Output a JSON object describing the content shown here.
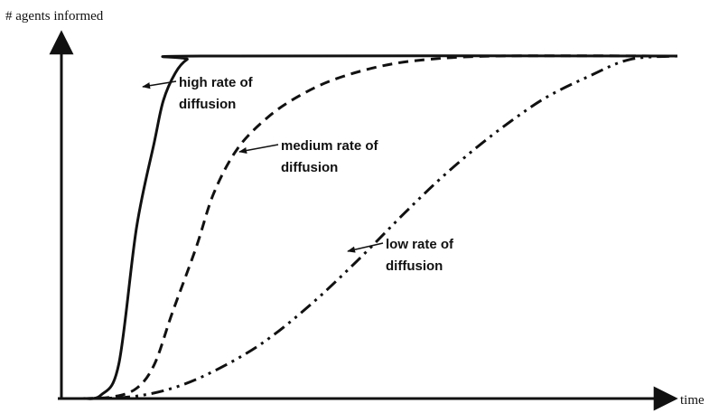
{
  "chart_data": {
    "type": "line",
    "title": "",
    "xlabel": "time",
    "ylabel": "# agents informed",
    "grid": false,
    "legend": "none",
    "xlim": [
      0,
      100
    ],
    "ylim": [
      0,
      100
    ],
    "series": [
      {
        "name": "high rate of diffusion",
        "style": "solid",
        "x": [
          0,
          3,
          6,
          9,
          12,
          13.5,
          15.5,
          17.5,
          20,
          100
        ],
        "y": [
          0,
          1,
          10,
          50,
          75,
          87,
          95,
          99,
          100,
          100
        ]
      },
      {
        "name": "medium rate of diffusion",
        "style": "dashed",
        "x": [
          0,
          5,
          9,
          12,
          15,
          19,
          22,
          26,
          31,
          36,
          42,
          50,
          58,
          70,
          100
        ],
        "y": [
          0,
          0.5,
          3,
          10,
          25,
          44,
          60,
          73,
          82,
          88,
          93,
          97,
          99,
          100,
          100
        ]
      },
      {
        "name": "low rate of diffusion",
        "style": "dashdotdot",
        "x": [
          0,
          8,
          15,
          22,
          30,
          38,
          46,
          54,
          60,
          66,
          72,
          78,
          85,
          92,
          100
        ],
        "y": [
          0,
          0.5,
          3,
          8,
          16,
          27,
          40,
          54,
          64,
          73,
          81,
          88,
          94,
          99,
          100
        ]
      }
    ],
    "annotations": [
      {
        "lines": [
          "high rate of",
          "diffusion"
        ],
        "target_series": 0
      },
      {
        "lines": [
          "medium rate of",
          "diffusion"
        ],
        "target_series": 1
      },
      {
        "lines": [
          "low rate of",
          "diffusion"
        ],
        "target_series": 2
      }
    ]
  }
}
